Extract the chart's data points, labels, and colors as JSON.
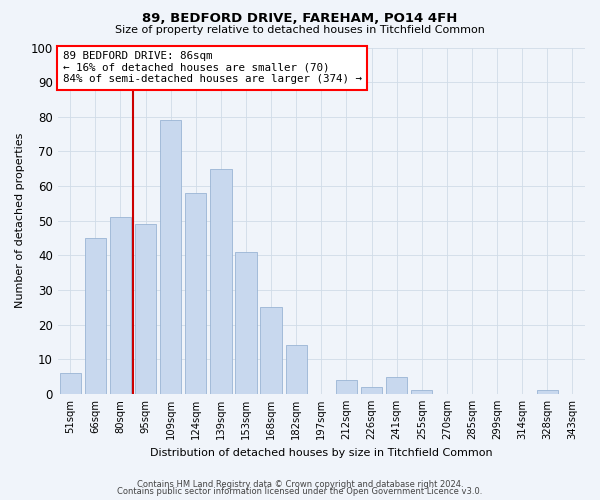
{
  "title": "89, BEDFORD DRIVE, FAREHAM, PO14 4FH",
  "subtitle": "Size of property relative to detached houses in Titchfield Common",
  "xlabel": "Distribution of detached houses by size in Titchfield Common",
  "ylabel": "Number of detached properties",
  "bar_labels": [
    "51sqm",
    "66sqm",
    "80sqm",
    "95sqm",
    "109sqm",
    "124sqm",
    "139sqm",
    "153sqm",
    "168sqm",
    "182sqm",
    "197sqm",
    "212sqm",
    "226sqm",
    "241sqm",
    "255sqm",
    "270sqm",
    "285sqm",
    "299sqm",
    "314sqm",
    "328sqm",
    "343sqm"
  ],
  "bar_values": [
    6,
    45,
    51,
    49,
    79,
    58,
    65,
    41,
    25,
    14,
    0,
    4,
    2,
    5,
    1,
    0,
    0,
    0,
    0,
    1,
    0
  ],
  "bar_color": "#c8d8ee",
  "bar_edge_color": "#9ab4d4",
  "vline_x_index": 2,
  "vline_color": "#cc0000",
  "annotation_line1": "89 BEDFORD DRIVE: 86sqm",
  "annotation_line2": "← 16% of detached houses are smaller (70)",
  "annotation_line3": "84% of semi-detached houses are larger (374) →",
  "ylim": [
    0,
    100
  ],
  "background_color": "#f0f4fa",
  "grid_color": "#d0dce8",
  "footer_line1": "Contains HM Land Registry data © Crown copyright and database right 2024.",
  "footer_line2": "Contains public sector information licensed under the Open Government Licence v3.0."
}
